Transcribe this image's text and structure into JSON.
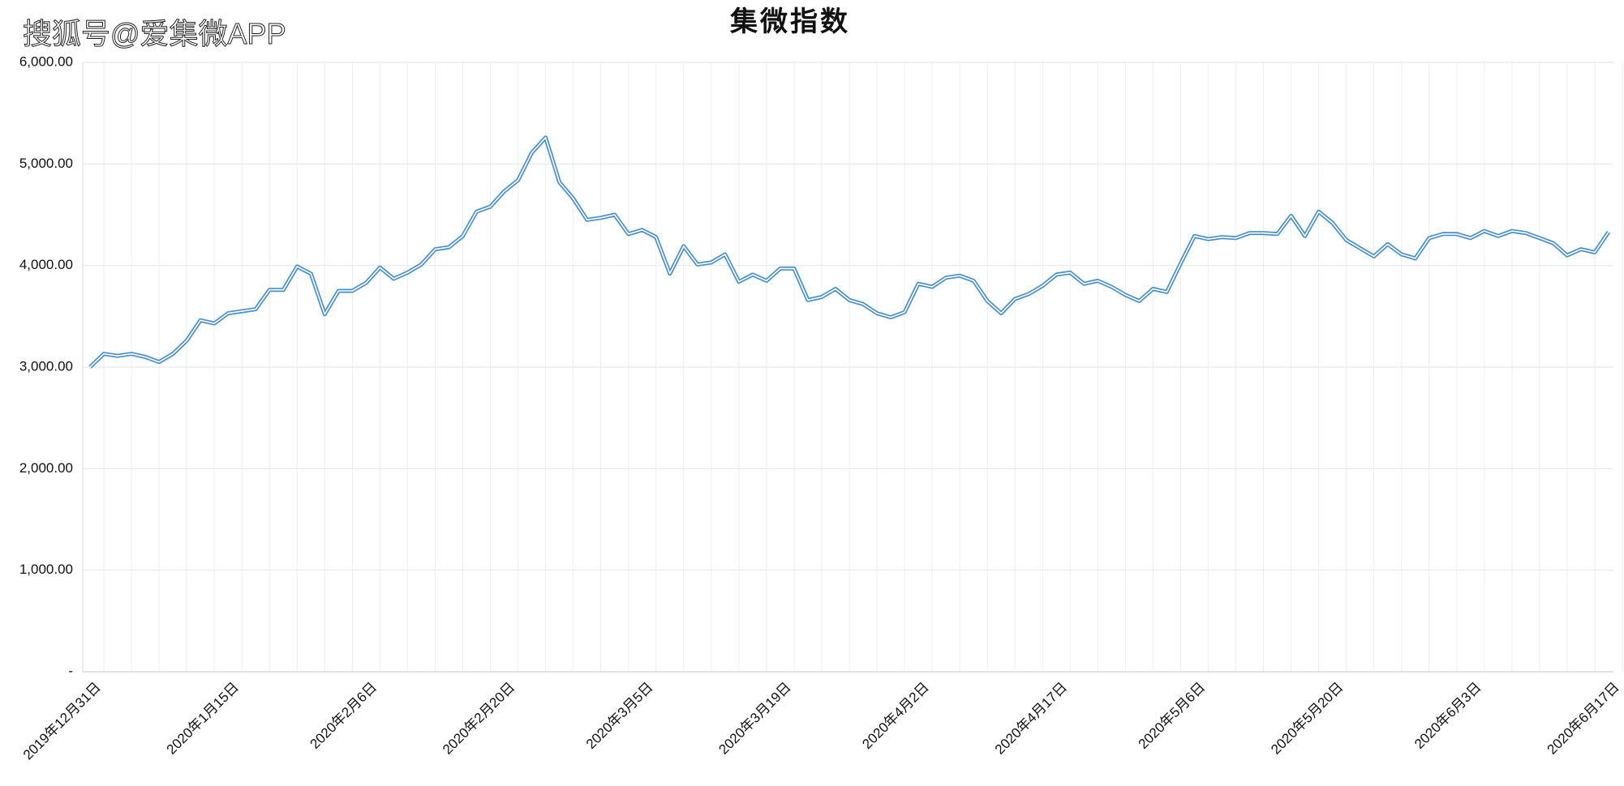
{
  "watermark": "搜狐号@爱集微APP",
  "chart_data": {
    "type": "line",
    "title": "集微指数",
    "categories": [
      "2019年12月31日",
      null,
      null,
      null,
      null,
      null,
      null,
      null,
      null,
      null,
      "2020年1月15日",
      null,
      null,
      null,
      null,
      null,
      null,
      null,
      null,
      null,
      "2020年2月6日",
      null,
      null,
      null,
      null,
      null,
      null,
      null,
      null,
      null,
      "2020年2月20日",
      null,
      null,
      null,
      null,
      null,
      null,
      null,
      null,
      null,
      "2020年3月5日",
      null,
      null,
      null,
      null,
      null,
      null,
      null,
      null,
      null,
      "2020年3月19日",
      null,
      null,
      null,
      null,
      null,
      null,
      null,
      null,
      null,
      "2020年4月2日",
      null,
      null,
      null,
      null,
      null,
      null,
      null,
      null,
      null,
      "2020年4月17日",
      null,
      null,
      null,
      null,
      null,
      null,
      null,
      null,
      null,
      "2020年5月6日",
      null,
      null,
      null,
      null,
      null,
      null,
      null,
      null,
      null,
      "2020年5月20日",
      null,
      null,
      null,
      null,
      null,
      null,
      null,
      null,
      null,
      "2020年6月3日",
      null,
      null,
      null,
      null,
      null,
      null,
      null,
      null,
      null,
      "2020年6月17日"
    ],
    "series": [
      {
        "name": "集微指数",
        "color": "#4a90c8",
        "values": [
          3000,
          3130,
          3110,
          3130,
          3100,
          3050,
          3130,
          3260,
          3460,
          3430,
          3530,
          3550,
          3570,
          3760,
          3760,
          3990,
          3920,
          3520,
          3750,
          3750,
          3830,
          3980,
          3870,
          3930,
          4010,
          4160,
          4180,
          4290,
          4530,
          4580,
          4730,
          4840,
          5110,
          5260,
          4820,
          4660,
          4450,
          4470,
          4500,
          4310,
          4350,
          4280,
          3920,
          4190,
          4010,
          4030,
          4110,
          3840,
          3910,
          3850,
          3970,
          3970,
          3660,
          3690,
          3770,
          3660,
          3620,
          3530,
          3490,
          3540,
          3820,
          3790,
          3880,
          3900,
          3850,
          3650,
          3530,
          3670,
          3720,
          3800,
          3910,
          3930,
          3820,
          3850,
          3790,
          3710,
          3650,
          3770,
          3740,
          4020,
          4290,
          4260,
          4280,
          4270,
          4320,
          4320,
          4310,
          4490,
          4290,
          4530,
          4420,
          4250,
          4170,
          4090,
          4210,
          4110,
          4070,
          4270,
          4310,
          4310,
          4270,
          4340,
          4290,
          4340,
          4320,
          4270,
          4220,
          4100,
          4160,
          4130,
          4330
        ]
      }
    ],
    "ylim": [
      0,
      6000
    ],
    "yticks": [
      {
        "value": 0,
        "label": "-"
      },
      {
        "value": 1000,
        "label": "1,000.00"
      },
      {
        "value": 2000,
        "label": "2,000.00"
      },
      {
        "value": 3000,
        "label": "3,000.00"
      },
      {
        "value": 4000,
        "label": "4,000.00"
      },
      {
        "value": 5000,
        "label": "5,000.00"
      },
      {
        "value": 6000,
        "label": "6,000.00"
      }
    ],
    "grid": true
  }
}
